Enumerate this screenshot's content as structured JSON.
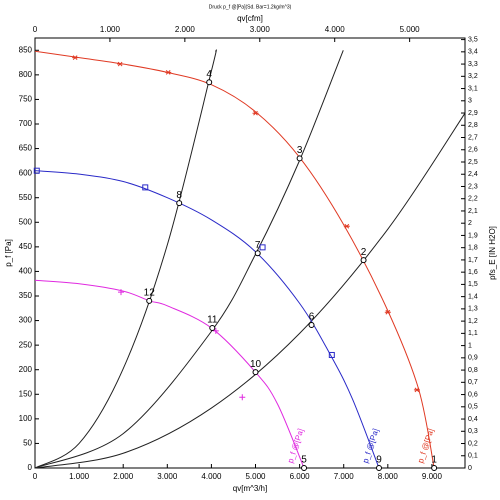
{
  "chart_data": {
    "type": "line",
    "title": "Druck p_f @[Pa](Sd. Bar=1.2kg/m^3)",
    "x_label": "qv[m^3/h]",
    "x2_label": "qv[cfm]",
    "y_label": "p_f [Pa]",
    "y2_label": "pfs_E [IN H2O]",
    "xlim": [
      0,
      9750
    ],
    "xticks": [
      0,
      {
        "value": 1000,
        "label": "1.000"
      },
      {
        "value": 2000,
        "label": "2.000"
      },
      {
        "value": 3000,
        "label": "3.000"
      },
      {
        "value": 4000,
        "label": "4.000"
      },
      {
        "value": 5000,
        "label": "5.000"
      },
      {
        "value": 6000,
        "label": "6.000"
      },
      {
        "value": 7000,
        "label": "7.000"
      },
      {
        "value": 8000,
        "label": "8.000"
      },
      {
        "value": 9000,
        "label": "9.000"
      }
    ],
    "x2lim": [
      0,
      5739
    ],
    "x2ticks": [
      0,
      {
        "value": 1000,
        "label": "1.000"
      },
      {
        "value": 2000,
        "label": "2.000"
      },
      {
        "value": 3000,
        "label": "3.000"
      },
      {
        "value": 4000,
        "label": "4.000"
      },
      {
        "value": 5000,
        "label": "5.000"
      }
    ],
    "ylim": [
      0,
      875
    ],
    "yticks": [
      0,
      50,
      100,
      150,
      200,
      250,
      300,
      350,
      400,
      450,
      500,
      550,
      600,
      650,
      700,
      750,
      800,
      850
    ],
    "y2lim": [
      0,
      3.513
    ],
    "y2ticks": [
      0,
      {
        "value": 0.1,
        "label": "0,1"
      },
      {
        "value": 0.2,
        "label": "0,2"
      },
      {
        "value": 0.3,
        "label": "0,3"
      },
      {
        "value": 0.4,
        "label": "0,4"
      },
      {
        "value": 0.5,
        "label": "0,5"
      },
      {
        "value": 0.6,
        "label": "0,6"
      },
      {
        "value": 0.7,
        "label": "0,7"
      },
      {
        "value": 0.8,
        "label": "0,8"
      },
      {
        "value": 0.9,
        "label": "0,9"
      },
      1,
      {
        "value": 1.1,
        "label": "1,1"
      },
      {
        "value": 1.2,
        "label": "1,2"
      },
      {
        "value": 1.3,
        "label": "1,3"
      },
      {
        "value": 1.4,
        "label": "1,4"
      },
      {
        "value": 1.5,
        "label": "1,5"
      },
      {
        "value": 1.6,
        "label": "1,6"
      },
      {
        "value": 1.7,
        "label": "1,7"
      },
      {
        "value": 1.8,
        "label": "1,8"
      },
      {
        "value": 1.9,
        "label": "1,9"
      },
      2,
      {
        "value": 2.1,
        "label": "2,1"
      },
      {
        "value": 2.2,
        "label": "2,2"
      },
      {
        "value": 2.3,
        "label": "2,3"
      },
      {
        "value": 2.4,
        "label": "2,4"
      },
      {
        "value": 2.5,
        "label": "2,5"
      },
      {
        "value": 2.6,
        "label": "2,6"
      },
      {
        "value": 2.7,
        "label": "2,7"
      },
      {
        "value": 2.8,
        "label": "2,8"
      },
      {
        "value": 2.9,
        "label": "2,9"
      },
      3,
      {
        "value": 3.1,
        "label": "3,1"
      },
      {
        "value": 3.2,
        "label": "3,2"
      },
      {
        "value": 3.3,
        "label": "3,3"
      },
      {
        "value": 3.4,
        "label": "3,4"
      },
      {
        "value": 3.5,
        "label": "3,5"
      }
    ],
    "series": [
      {
        "name": "p_f @[Pa]",
        "color": "#e03a24",
        "marker": "asterisk",
        "x": [
          0,
          1000,
          2000,
          3000,
          4000,
          5000,
          6000,
          7000,
          8000,
          8700,
          9050
        ],
        "values": [
          848,
          835,
          822,
          805,
          780,
          725,
          632,
          495,
          320,
          160,
          0
        ],
        "markers_x": [
          910,
          1930,
          3020,
          5000,
          7070,
          8000,
          8660
        ],
        "markers_y": [
          835,
          822,
          805,
          722,
          492,
          317,
          159
        ]
      },
      {
        "name": "p_f @[Pa]",
        "color": "#2a2ac8",
        "marker": "square",
        "x": [
          0,
          1000,
          2000,
          3000,
          4000,
          5000,
          6000,
          6700,
          7200,
          7800
        ],
        "values": [
          605,
          598,
          583,
          550,
          505,
          440,
          335,
          230,
          140,
          0
        ],
        "markers_x": [
          40,
          2500,
          5160,
          6730
        ],
        "markers_y": [
          605,
          571,
          449,
          230
        ]
      },
      {
        "name": "p_f @[Pa]",
        "color": "#e02ae0",
        "marker": "plus",
        "x": [
          0,
          1000,
          2000,
          2600,
          3000,
          4000,
          5000,
          5500,
          6100
        ],
        "values": [
          382,
          375,
          360,
          340,
          330,
          285,
          195,
          130,
          0
        ],
        "markers_x": [
          1950,
          4100,
          4700
        ],
        "markers_y": [
          358,
          279,
          144
        ]
      }
    ],
    "system_curves": [
      {
        "color": "#222222",
        "x": [
          0,
          1000,
          2000,
          3000,
          4000,
          4100
        ],
        "values": [
          0,
          50,
          202,
          454,
          808,
          849
        ]
      },
      {
        "color": "#222222",
        "x": [
          0,
          2000,
          4000,
          5000,
          6000,
          6990
        ],
        "values": [
          0,
          70,
          278,
          435,
          626,
          850
        ]
      },
      {
        "color": "#222222",
        "x": [
          0,
          2000,
          4000,
          6000,
          8000,
          9750
        ],
        "values": [
          0,
          30,
          122,
          274,
          486,
          722
        ]
      }
    ],
    "points": [
      {
        "label": "1",
        "x": 9050,
        "y": 0
      },
      {
        "label": "2",
        "x": 7450,
        "y": 423
      },
      {
        "label": "3",
        "x": 6000,
        "y": 630
      },
      {
        "label": "4",
        "x": 3950,
        "y": 785
      },
      {
        "label": "5",
        "x": 6100,
        "y": 0
      },
      {
        "label": "6",
        "x": 6270,
        "y": 291
      },
      {
        "label": "7",
        "x": 5050,
        "y": 437
      },
      {
        "label": "8",
        "x": 3270,
        "y": 539
      },
      {
        "label": "9",
        "x": 7800,
        "y": 0
      },
      {
        "label": "10",
        "x": 5000,
        "y": 195
      },
      {
        "label": "11",
        "x": 4020,
        "y": 285
      },
      {
        "label": "12",
        "x": 2590,
        "y": 340
      }
    ]
  }
}
